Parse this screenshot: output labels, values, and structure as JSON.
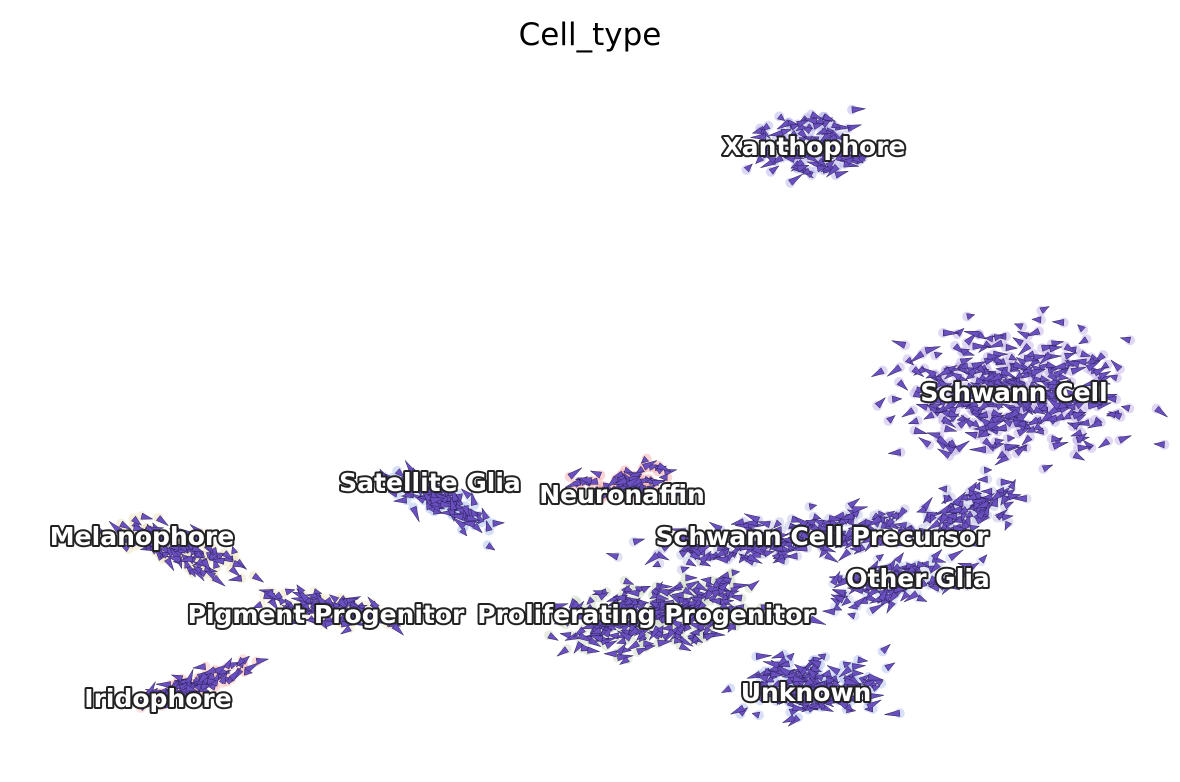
{
  "chart_data": {
    "type": "scatter",
    "title": "Cell_type",
    "xlabel": "",
    "ylabel": "",
    "axes_visible": false,
    "grid": false,
    "legend": "on data",
    "arrow_color": "#6a4fc1",
    "arrow_edge_color": "#2a1f55",
    "clusters": [
      {
        "label": "Xanthophore",
        "color": "#b9b8ec",
        "center": [
          7.3,
          8.4
        ]
      },
      {
        "label": "Schwann Cell",
        "color": "#c5b6ea",
        "center": [
          9.8,
          4.3
        ]
      },
      {
        "label": "Satellite Glia",
        "color": "#b3c6ef",
        "center": [
          2.5,
          2.8
        ]
      },
      {
        "label": "Neuronaffin",
        "color": "#f4b3b3",
        "center": [
          4.9,
          2.6
        ]
      },
      {
        "label": "Schwann Cell Precursor",
        "color": "#c7c6ea",
        "center": [
          7.4,
          1.9
        ]
      },
      {
        "label": "Melanophore",
        "color": "#ece3c2",
        "center": [
          -1.1,
          1.9
        ]
      },
      {
        "label": "Other Glia",
        "color": "#ccd4f0",
        "center": [
          8.6,
          1.2
        ]
      },
      {
        "label": "Pigment Progenitor",
        "color": "#f1e9cf",
        "center": [
          1.2,
          0.6
        ]
      },
      {
        "label": "Proliferating Progenitor",
        "color": "#d2dccb",
        "center": [
          5.2,
          0.6
        ]
      },
      {
        "label": "Unknown",
        "color": "#b8c4f3",
        "center": [
          7.2,
          -0.7
        ]
      },
      {
        "label": "Iridophore",
        "color": "#f6c5c0",
        "center": [
          -0.9,
          -0.8
        ]
      }
    ]
  }
}
